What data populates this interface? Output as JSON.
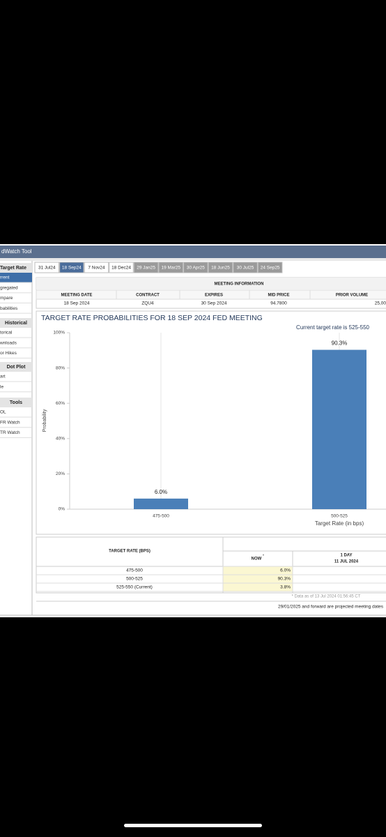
{
  "header": {
    "title": "dWatch Tool"
  },
  "sidebar": {
    "sections": [
      {
        "title": "Target Rate",
        "items": [
          "rrent",
          "gregated",
          "mpare",
          "babilities"
        ]
      },
      {
        "title": "Historical",
        "items": [
          "torical",
          "wnloads",
          "or Hikes"
        ]
      },
      {
        "title": "Dot Plot",
        "items": [
          "art",
          "le"
        ]
      },
      {
        "title": "Tools",
        "items": [
          "OL",
          "FR Watch",
          "TR Watch"
        ]
      }
    ]
  },
  "tabs": [
    "31 Jul24",
    "18 Sep24",
    "7 Nov24",
    "18 Dec24",
    "29 Jan25",
    "19 Mar25",
    "30 Apr25",
    "18 Jun25",
    "30 Jul25",
    "24 Sep25"
  ],
  "meeting_info": {
    "title": "MEETING INFORMATION",
    "columns": [
      "MEETING DATE",
      "CONTRACT",
      "EXPIRES",
      "MID PRICE",
      "PRIOR VOLUME"
    ],
    "values": [
      "18 Sep 2024",
      "ZQU4",
      "30 Sep 2024",
      "94.7800",
      "25,00"
    ]
  },
  "chart_data": {
    "type": "bar",
    "title": "TARGET RATE PROBABILITIES FOR 18 SEP 2024 FED MEETING",
    "subtitle": "Current target rate is 525-550",
    "x_label": "Target Rate (in bps)",
    "y_label": "Probability",
    "categories": [
      "475-500",
      "500-525"
    ],
    "values": [
      6.0,
      90.3
    ],
    "value_labels": [
      "6.0%",
      "90.3%"
    ],
    "color": "#4a7fb8",
    "ylim": [
      0,
      100
    ],
    "yticks": [
      {
        "value": 0,
        "label": "0%"
      },
      {
        "value": 20,
        "label": "20%"
      },
      {
        "value": 40,
        "label": "40%"
      },
      {
        "value": 60,
        "label": "60%"
      },
      {
        "value": 80,
        "label": "80%"
      },
      {
        "value": 100,
        "label": "100%"
      }
    ],
    "grid": true
  },
  "probability_table": {
    "header": "TARGET RATE (BPS)",
    "now": "NOW",
    "now_mark": "*",
    "one_day": "1 DAY",
    "one_day_date": "11 JUL 2024",
    "rows": [
      [
        "475-500",
        "6.0%"
      ],
      [
        "500-525",
        "90.3%"
      ],
      [
        "525-550 (Current)",
        "3.8%"
      ]
    ],
    "footnote": "* Data as of 13 Jul 2024 01:56:45 CT"
  },
  "note": "29/01/2025 and forward are projected meeting dates"
}
